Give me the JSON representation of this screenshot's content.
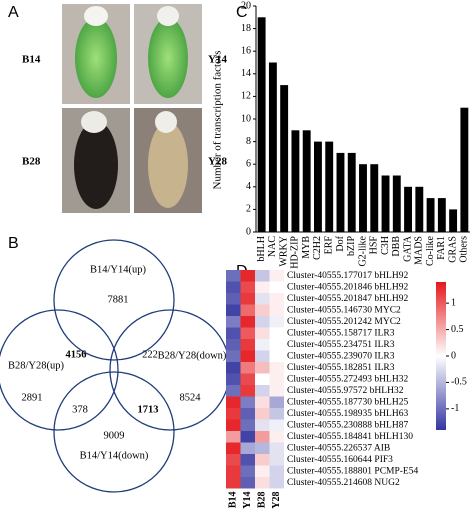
{
  "panel_labels": [
    "A",
    "B",
    "C",
    "D"
  ],
  "photos": [
    "B14",
    "Y14",
    "B28",
    "Y28"
  ],
  "venn": {
    "sets": [
      "B14/Y14(up)",
      "B28/Y28(up)",
      "B28/Y28(down)",
      "B14/Y14(down)"
    ],
    "counts": [
      {
        "value": 7881,
        "bold": false
      },
      {
        "value": 4156,
        "bold": true
      },
      {
        "value": 222,
        "bold": false
      },
      {
        "value": 2891,
        "bold": false
      },
      {
        "value": 8524,
        "bold": false
      },
      {
        "value": 378,
        "bold": false
      },
      {
        "value": 1713,
        "bold": true
      },
      {
        "value": 9009,
        "bold": false
      }
    ]
  },
  "chart_data": [
    {
      "type": "bar",
      "y_label": "Number of transcription factors",
      "color": "#000000",
      "categories": [
        "bHLH",
        "NAC",
        "WRKY",
        "HD-ZIP",
        "MYB",
        "C2H2",
        "ERF",
        "Dof",
        "bZIP",
        "G2-like",
        "HSF",
        "C3H",
        "DBB",
        "GATA",
        "MADS",
        "Co-like",
        "FAR1",
        "GRAS",
        "Others"
      ],
      "values": [
        19,
        15,
        13,
        9,
        9,
        8,
        8,
        7,
        7,
        6,
        6,
        5,
        5,
        4,
        4,
        3,
        3,
        2,
        11
      ],
      "ylim": [
        0,
        20
      ],
      "yticks": [
        0,
        2,
        4,
        6,
        8,
        10,
        12,
        14,
        16,
        18,
        20
      ]
    },
    {
      "type": "heatmap",
      "rows": [
        "Cluster-40555.177017 bHLH92",
        "Cluster-40555.201846 bHLH92",
        "Cluster-40555.201847 bHLH92",
        "Cluster-40555.146730 MYC2",
        "Cluster-40555.201242 MYC2",
        "Cluster-40555.158717 ILR3",
        "Cluster-40555.234751 ILR3",
        "Cluster-40555.239070 ILR3",
        "Cluster-40555.182851 ILR3",
        "Cluster-40555.272493 bHLH32",
        "Cluster-40555.97572 bHLH32",
        "Cluster-40555.187730 bHLH25",
        "Cluster-40555.198935 bHLH63",
        "Cluster-40555.230888 bHLH87",
        "Cluster-40555.184841 bHLH130",
        "Cluster-40555.226537 AIB",
        "Cluster-40555.160644 PIF3",
        "Cluster-40555.188801 PCMP-E54",
        "Cluster-40555.214608 NUG2"
      ],
      "columns": [
        "B14",
        "Y14",
        "B28",
        "Y28"
      ],
      "values": [
        [
          -1.0,
          1.3,
          -0.4,
          0.1
        ],
        [
          -1.2,
          1.1,
          0.1,
          0.0
        ],
        [
          -1.1,
          1.2,
          -0.2,
          0.1
        ],
        [
          -1.3,
          0.9,
          0.3,
          0.1
        ],
        [
          -0.9,
          1.3,
          -0.3,
          -0.1
        ],
        [
          -1.2,
          1.0,
          0.2,
          0.0
        ],
        [
          -1.1,
          1.2,
          -0.1,
          0.0
        ],
        [
          -1.0,
          1.3,
          -0.3,
          0.0
        ],
        [
          -1.3,
          0.8,
          0.4,
          0.1
        ],
        [
          -1.2,
          1.1,
          0.0,
          0.1
        ],
        [
          -1.0,
          1.2,
          -0.3,
          0.1
        ],
        [
          1.3,
          -0.9,
          0.2,
          -0.6
        ],
        [
          1.2,
          -1.1,
          0.3,
          -0.4
        ],
        [
          1.3,
          -1.0,
          -0.2,
          -0.1
        ],
        [
          0.6,
          -1.3,
          0.6,
          0.1
        ],
        [
          1.3,
          -0.6,
          -0.5,
          -0.2
        ],
        [
          1.1,
          -1.2,
          0.3,
          -0.2
        ],
        [
          1.2,
          -1.0,
          0.1,
          -0.3
        ],
        [
          1.2,
          -1.1,
          0.2,
          -0.3
        ]
      ],
      "zlim": [
        -1.4,
        1.4
      ],
      "zticks": [
        1,
        0.5,
        0,
        -0.5,
        -1
      ]
    }
  ]
}
